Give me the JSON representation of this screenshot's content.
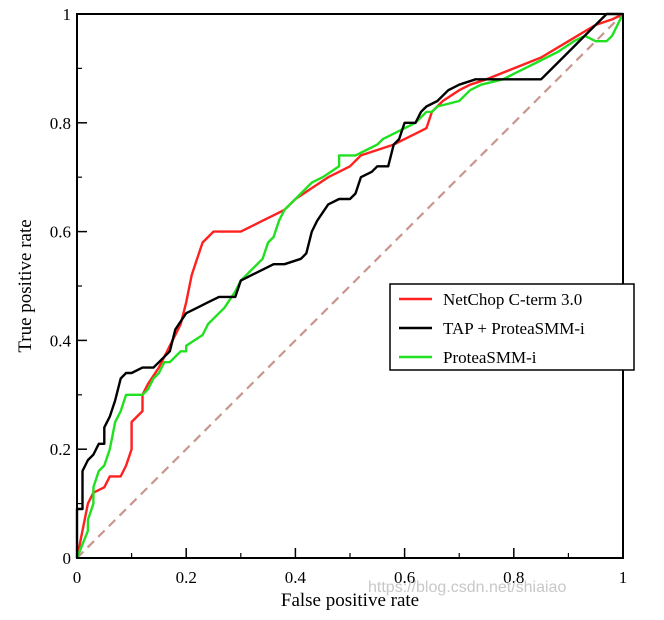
{
  "chart_data": {
    "type": "line",
    "title": "",
    "xlabel": "False positive rate",
    "ylabel": "True positive rate",
    "xlim": [
      0,
      1
    ],
    "ylim": [
      0,
      1
    ],
    "xticks": [
      "0",
      "0.2",
      "0.4",
      "0.6",
      "0.8",
      "1"
    ],
    "yticks": [
      "0",
      "0.2",
      "0.4",
      "0.6",
      "0.8",
      "1"
    ],
    "xtick_values": [
      0,
      0.2,
      0.4,
      0.6,
      0.8,
      1
    ],
    "ytick_values": [
      0,
      0.2,
      0.4,
      0.6,
      0.8,
      1
    ],
    "legend_position": "middle-right",
    "grid": false,
    "reference_line": {
      "name": "random",
      "color": "#c8968c",
      "style": "dashed",
      "points": [
        [
          0,
          0
        ],
        [
          1,
          1
        ]
      ]
    },
    "series": [
      {
        "name": "NetChop C-term 3.0",
        "color": "#ff2020",
        "points": [
          [
            0,
            0
          ],
          [
            0.02,
            0.1
          ],
          [
            0.03,
            0.12
          ],
          [
            0.05,
            0.13
          ],
          [
            0.06,
            0.15
          ],
          [
            0.08,
            0.15
          ],
          [
            0.09,
            0.17
          ],
          [
            0.1,
            0.2
          ],
          [
            0.1,
            0.25
          ],
          [
            0.12,
            0.27
          ],
          [
            0.12,
            0.3
          ],
          [
            0.13,
            0.32
          ],
          [
            0.15,
            0.35
          ],
          [
            0.16,
            0.37
          ],
          [
            0.17,
            0.39
          ],
          [
            0.18,
            0.41
          ],
          [
            0.19,
            0.43
          ],
          [
            0.2,
            0.47
          ],
          [
            0.21,
            0.52
          ],
          [
            0.22,
            0.55
          ],
          [
            0.23,
            0.58
          ],
          [
            0.25,
            0.6
          ],
          [
            0.27,
            0.6
          ],
          [
            0.3,
            0.6
          ],
          [
            0.32,
            0.61
          ],
          [
            0.34,
            0.62
          ],
          [
            0.36,
            0.63
          ],
          [
            0.38,
            0.64
          ],
          [
            0.4,
            0.66
          ],
          [
            0.43,
            0.68
          ],
          [
            0.46,
            0.7
          ],
          [
            0.48,
            0.71
          ],
          [
            0.5,
            0.72
          ],
          [
            0.52,
            0.74
          ],
          [
            0.55,
            0.75
          ],
          [
            0.58,
            0.76
          ],
          [
            0.6,
            0.77
          ],
          [
            0.62,
            0.78
          ],
          [
            0.64,
            0.79
          ],
          [
            0.65,
            0.82
          ],
          [
            0.67,
            0.84
          ],
          [
            0.7,
            0.86
          ],
          [
            0.72,
            0.87
          ],
          [
            0.75,
            0.88
          ],
          [
            0.8,
            0.9
          ],
          [
            0.85,
            0.92
          ],
          [
            0.9,
            0.95
          ],
          [
            0.95,
            0.98
          ],
          [
            0.98,
            0.99
          ],
          [
            1,
            1
          ]
        ]
      },
      {
        "name": "TAP + ProteaSMM-i",
        "color": "#000000",
        "points": [
          [
            0,
            0
          ],
          [
            0,
            0.09
          ],
          [
            0.01,
            0.09
          ],
          [
            0.01,
            0.16
          ],
          [
            0.02,
            0.18
          ],
          [
            0.03,
            0.19
          ],
          [
            0.04,
            0.21
          ],
          [
            0.05,
            0.21
          ],
          [
            0.05,
            0.24
          ],
          [
            0.06,
            0.26
          ],
          [
            0.07,
            0.29
          ],
          [
            0.08,
            0.33
          ],
          [
            0.09,
            0.34
          ],
          [
            0.1,
            0.34
          ],
          [
            0.12,
            0.35
          ],
          [
            0.14,
            0.35
          ],
          [
            0.15,
            0.36
          ],
          [
            0.17,
            0.38
          ],
          [
            0.18,
            0.42
          ],
          [
            0.2,
            0.45
          ],
          [
            0.22,
            0.46
          ],
          [
            0.24,
            0.47
          ],
          [
            0.26,
            0.48
          ],
          [
            0.29,
            0.48
          ],
          [
            0.3,
            0.51
          ],
          [
            0.32,
            0.52
          ],
          [
            0.34,
            0.53
          ],
          [
            0.36,
            0.54
          ],
          [
            0.38,
            0.54
          ],
          [
            0.41,
            0.55
          ],
          [
            0.42,
            0.56
          ],
          [
            0.43,
            0.6
          ],
          [
            0.44,
            0.62
          ],
          [
            0.46,
            0.65
          ],
          [
            0.48,
            0.66
          ],
          [
            0.5,
            0.66
          ],
          [
            0.51,
            0.67
          ],
          [
            0.52,
            0.7
          ],
          [
            0.54,
            0.71
          ],
          [
            0.55,
            0.72
          ],
          [
            0.57,
            0.72
          ],
          [
            0.58,
            0.76
          ],
          [
            0.59,
            0.77
          ],
          [
            0.6,
            0.8
          ],
          [
            0.62,
            0.8
          ],
          [
            0.63,
            0.82
          ],
          [
            0.64,
            0.83
          ],
          [
            0.66,
            0.84
          ],
          [
            0.68,
            0.86
          ],
          [
            0.7,
            0.87
          ],
          [
            0.73,
            0.88
          ],
          [
            0.75,
            0.88
          ],
          [
            0.85,
            0.88
          ],
          [
            0.88,
            0.91
          ],
          [
            0.91,
            0.94
          ],
          [
            0.94,
            0.97
          ],
          [
            0.96,
            0.99
          ],
          [
            0.97,
            1
          ],
          [
            1,
            1
          ]
        ]
      },
      {
        "name": "ProteaSMM-i",
        "color": "#20e020",
        "points": [
          [
            0,
            0
          ],
          [
            0.02,
            0.05
          ],
          [
            0.02,
            0.07
          ],
          [
            0.03,
            0.1
          ],
          [
            0.03,
            0.13
          ],
          [
            0.04,
            0.16
          ],
          [
            0.05,
            0.17
          ],
          [
            0.06,
            0.2
          ],
          [
            0.07,
            0.25
          ],
          [
            0.08,
            0.27
          ],
          [
            0.09,
            0.3
          ],
          [
            0.12,
            0.3
          ],
          [
            0.13,
            0.31
          ],
          [
            0.14,
            0.33
          ],
          [
            0.15,
            0.34
          ],
          [
            0.16,
            0.36
          ],
          [
            0.17,
            0.36
          ],
          [
            0.19,
            0.38
          ],
          [
            0.2,
            0.38
          ],
          [
            0.2,
            0.39
          ],
          [
            0.23,
            0.41
          ],
          [
            0.24,
            0.43
          ],
          [
            0.26,
            0.45
          ],
          [
            0.27,
            0.46
          ],
          [
            0.29,
            0.49
          ],
          [
            0.3,
            0.51
          ],
          [
            0.32,
            0.53
          ],
          [
            0.34,
            0.55
          ],
          [
            0.35,
            0.58
          ],
          [
            0.36,
            0.59
          ],
          [
            0.37,
            0.62
          ],
          [
            0.38,
            0.64
          ],
          [
            0.4,
            0.66
          ],
          [
            0.43,
            0.69
          ],
          [
            0.45,
            0.7
          ],
          [
            0.48,
            0.72
          ],
          [
            0.48,
            0.74
          ],
          [
            0.51,
            0.74
          ],
          [
            0.53,
            0.75
          ],
          [
            0.55,
            0.76
          ],
          [
            0.56,
            0.77
          ],
          [
            0.58,
            0.78
          ],
          [
            0.6,
            0.79
          ],
          [
            0.62,
            0.8
          ],
          [
            0.64,
            0.82
          ],
          [
            0.65,
            0.82
          ],
          [
            0.66,
            0.83
          ],
          [
            0.7,
            0.84
          ],
          [
            0.72,
            0.86
          ],
          [
            0.74,
            0.87
          ],
          [
            0.78,
            0.88
          ],
          [
            0.8,
            0.89
          ],
          [
            0.82,
            0.9
          ],
          [
            0.84,
            0.91
          ],
          [
            0.86,
            0.92
          ],
          [
            0.88,
            0.93
          ],
          [
            0.91,
            0.95
          ],
          [
            0.93,
            0.96
          ],
          [
            0.95,
            0.95
          ],
          [
            0.97,
            0.95
          ],
          [
            0.98,
            0.96
          ],
          [
            0.99,
            0.98
          ],
          [
            1,
            1
          ]
        ]
      }
    ]
  },
  "watermark": "https://blog.csdn.net/shiaiao"
}
